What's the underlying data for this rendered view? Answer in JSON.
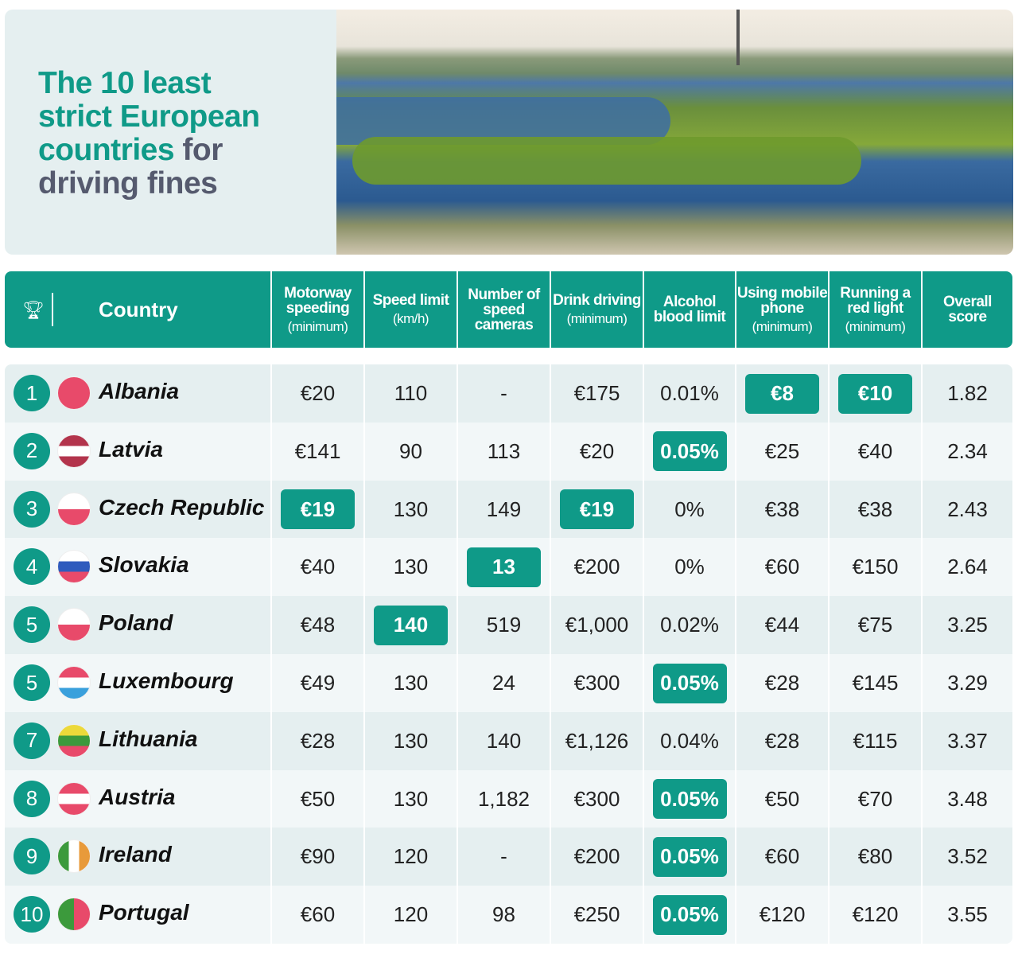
{
  "title": {
    "line1": "The 10 least",
    "line2": "strict European",
    "line3_teal": "countries",
    "line3_grey": "for",
    "line4": "driving fines"
  },
  "colors": {
    "accent": "#0f9a88",
    "title_grey": "#555a6e",
    "row_shade": "#e5eff0",
    "row_light": "#f2f7f8"
  },
  "header": {
    "icon": "trophy-icon",
    "country": "Country",
    "columns": [
      {
        "label": "Motorway speeding",
        "sub": "(minimum)"
      },
      {
        "label": "Speed limit",
        "sub": "(km/h)"
      },
      {
        "label": "Number of speed cameras",
        "sub": ""
      },
      {
        "label": "Drink driving",
        "sub": "(minimum)"
      },
      {
        "label": "Alcohol blood limit",
        "sub": ""
      },
      {
        "label": "Using mobile phone",
        "sub": "(minimum)"
      },
      {
        "label": "Running a red light",
        "sub": "(minimum)"
      },
      {
        "label": "Overall score",
        "sub": ""
      }
    ]
  },
  "rows": [
    {
      "rank": "1",
      "country": "Albania",
      "flag": [
        "#e84a6a"
      ],
      "values": [
        "€20",
        "110",
        "-",
        "€175",
        "0.01%",
        "€8",
        "€10",
        "1.82"
      ],
      "highlight": [
        5,
        6
      ]
    },
    {
      "rank": "2",
      "country": "Latvia",
      "flag": [
        "#b3344c",
        "#fff",
        "#b3344c"
      ],
      "values": [
        "€141",
        "90",
        "113",
        "€20",
        "0.05%",
        "€25",
        "€40",
        "2.34"
      ],
      "highlight": [
        4
      ]
    },
    {
      "rank": "3",
      "country": "Czech Republic",
      "flag": [
        "#fff",
        "#e84a6a"
      ],
      "values": [
        "€19",
        "130",
        "149",
        "€19",
        "0%",
        "€38",
        "€38",
        "2.43"
      ],
      "highlight": [
        0,
        3
      ]
    },
    {
      "rank": "4",
      "country": "Slovakia",
      "flag": [
        "#fff",
        "#2f5bbd",
        "#e84a6a"
      ],
      "values": [
        "€40",
        "130",
        "13",
        "€200",
        "0%",
        "€60",
        "€150",
        "2.64"
      ],
      "highlight": [
        2
      ]
    },
    {
      "rank": "5",
      "country": "Poland",
      "flag": [
        "#fff",
        "#e84a6a"
      ],
      "values": [
        "€48",
        "140",
        "519",
        "€1,000",
        "0.02%",
        "€44",
        "€75",
        "3.25"
      ],
      "highlight": [
        1
      ]
    },
    {
      "rank": "5",
      "country": "Luxembourg",
      "flag": [
        "#e84a6a",
        "#fff",
        "#3aa0dc"
      ],
      "values": [
        "€49",
        "130",
        "24",
        "€300",
        "0.05%",
        "€28",
        "€145",
        "3.29"
      ],
      "highlight": [
        4
      ]
    },
    {
      "rank": "7",
      "country": "Lithuania",
      "flag": [
        "#ecd93a",
        "#3c9a3c",
        "#e84a6a"
      ],
      "values": [
        "€28",
        "130",
        "140",
        "€1,126",
        "0.04%",
        "€28",
        "€115",
        "3.37"
      ],
      "highlight": []
    },
    {
      "rank": "8",
      "country": "Austria",
      "flag": [
        "#e84a6a",
        "#fff",
        "#e84a6a"
      ],
      "values": [
        "€50",
        "130",
        "1,182",
        "€300",
        "0.05%",
        "€50",
        "€70",
        "3.48"
      ],
      "highlight": [
        4
      ]
    },
    {
      "rank": "9",
      "country": "Ireland",
      "flag": [
        "#3c9a3c",
        "#fff",
        "#e89a3a"
      ],
      "vertical": true,
      "values": [
        "€90",
        "120",
        "-",
        "€200",
        "0.05%",
        "€60",
        "€80",
        "3.52"
      ],
      "highlight": [
        4
      ]
    },
    {
      "rank": "10",
      "country": "Portugal",
      "flag": [
        "#3c9a3c",
        "#e84a6a"
      ],
      "vertical": true,
      "values": [
        "€60",
        "120",
        "98",
        "€250",
        "0.05%",
        "€120",
        "€120",
        "3.55"
      ],
      "highlight": [
        4
      ]
    }
  ]
}
